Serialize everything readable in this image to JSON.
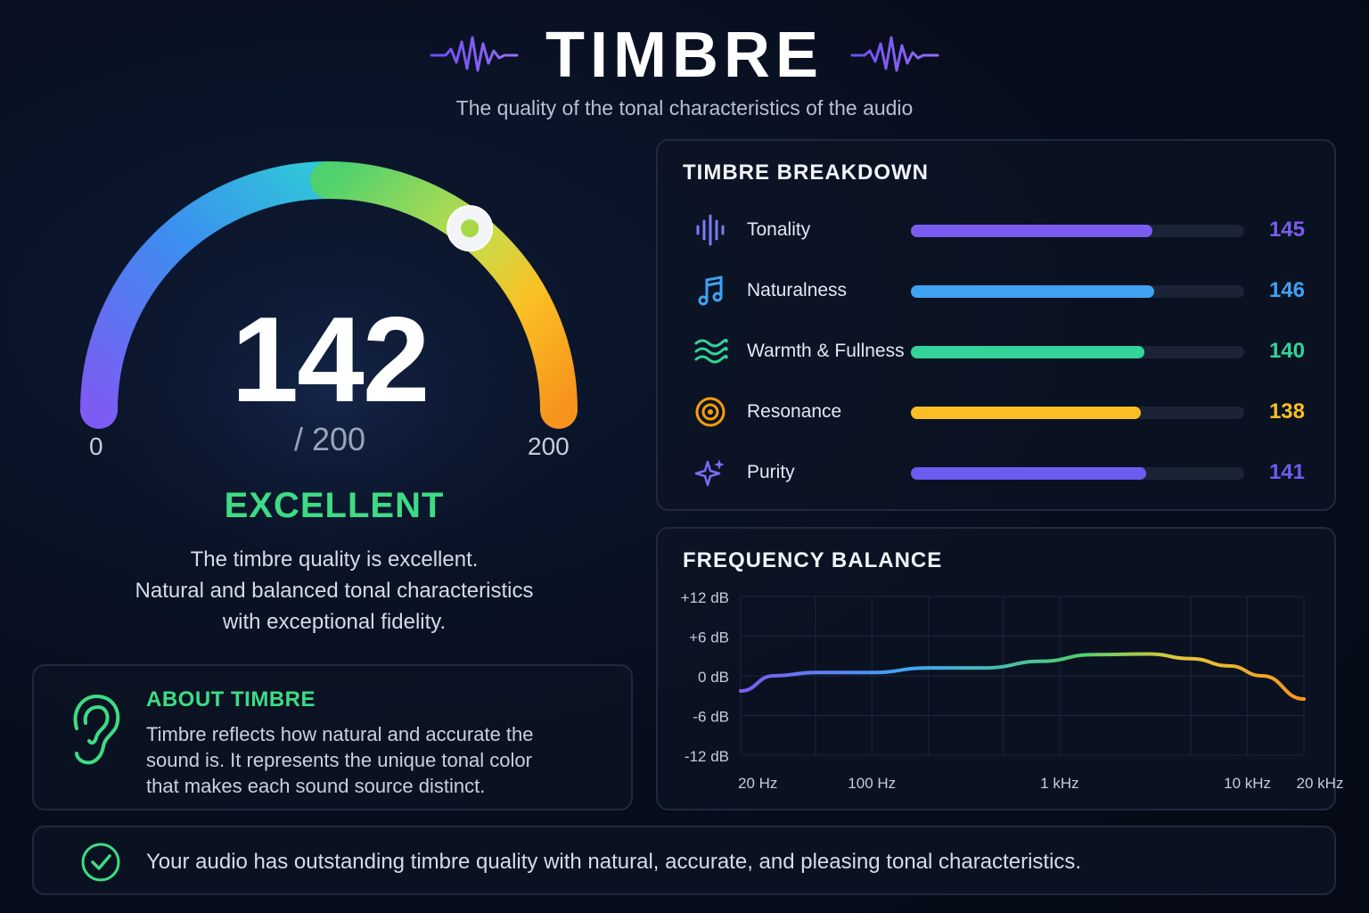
{
  "header": {
    "title": "TIMBRE",
    "subtitle": "The quality of the tonal characteristics of the audio"
  },
  "gauge": {
    "score": "142",
    "score_value": 142,
    "max_label": "/ 200",
    "min": 0,
    "max": 200,
    "min_label": "0",
    "max_end_label": "200",
    "rating": "EXCELLENT",
    "description": [
      "The timbre quality is excellent.",
      "Natural and balanced tonal characteristics",
      "with exceptional fidelity."
    ]
  },
  "about": {
    "title": "ABOUT TIMBRE",
    "lines": [
      "Timbre reflects how natural and accurate the",
      "sound is. It represents the unique tonal color",
      "that makes each sound source distinct."
    ],
    "icon": "ear-icon"
  },
  "breakdown": {
    "title": "TIMBRE BREAKDOWN",
    "max": 200,
    "metrics": [
      {
        "label": "Tonality",
        "value": "145",
        "score": 145,
        "color": "#7b5cf0",
        "icon": "soundwave-icon"
      },
      {
        "label": "Naturalness",
        "value": "146",
        "score": 146,
        "color": "#3fa2f3",
        "icon": "music-note-icon"
      },
      {
        "label": "Warmth & Fullness",
        "value": "140",
        "score": 140,
        "color": "#34d399",
        "icon": "waves-icon"
      },
      {
        "label": "Resonance",
        "value": "138",
        "score": 138,
        "color": "#fbbf24",
        "icon": "target-icon"
      },
      {
        "label": "Purity",
        "value": "141",
        "score": 141,
        "color": "#6d5cf0",
        "icon": "sparkle-icon"
      }
    ]
  },
  "frequency": {
    "title": "FREQUENCY BALANCE",
    "y_labels": [
      "+12 dB",
      "+6 dB",
      "0 dB",
      "-6 dB",
      "-12 dB"
    ],
    "x_labels": [
      "20 Hz",
      "100 Hz",
      "1 kHz",
      "10 kHz",
      "20 kHz"
    ]
  },
  "chart_data": {
    "type": "line",
    "title": "FREQUENCY BALANCE",
    "xlabel": "",
    "ylabel": "",
    "x_scale": "log",
    "xlim": [
      20,
      20000
    ],
    "ylim": [
      -12,
      12
    ],
    "x_ticks": [
      "20 Hz",
      "100 Hz",
      "1 kHz",
      "10 kHz",
      "20 kHz"
    ],
    "y_ticks": [
      "+12 dB",
      "+6 dB",
      "0 dB",
      "-6 dB",
      "-12 dB"
    ],
    "grid": true,
    "series": [
      {
        "x": [
          20,
          30,
          50,
          100,
          200,
          400,
          800,
          1500,
          3000,
          5000,
          8000,
          12000,
          20000
        ],
        "y": [
          -2.3,
          0,
          0.5,
          0.5,
          1.2,
          1.2,
          2.2,
          3.2,
          3.3,
          2.6,
          1.5,
          0,
          -3.5
        ]
      }
    ]
  },
  "footer": {
    "text": "Your audio has outstanding timbre quality with natural, accurate, and pleasing tonal characteristics.",
    "icon": "check-circle-icon"
  },
  "colors": {
    "accent_green": "#3ddc84",
    "gauge_start": "#7c5cf2",
    "gauge_mid": "#4fd16e",
    "gauge_end": "#f7941d"
  }
}
